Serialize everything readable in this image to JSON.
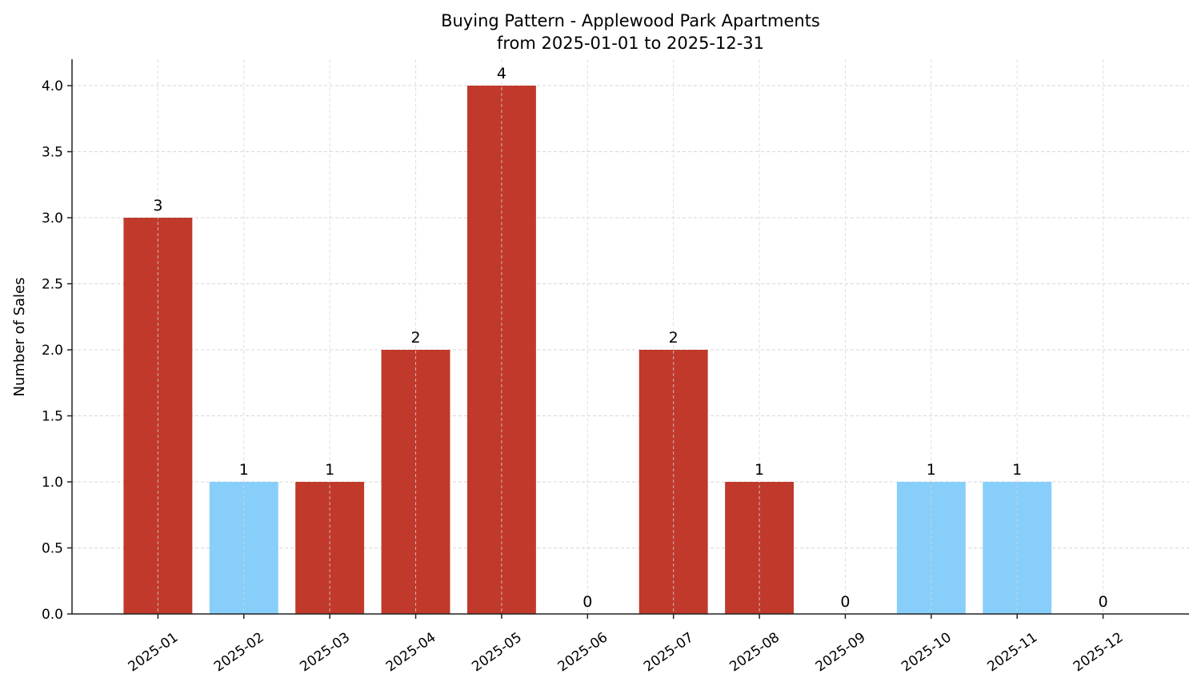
{
  "chart_data": {
    "type": "bar",
    "title": "Buying Pattern - Applewood Park Apartments",
    "subtitle": "from 2025-01-01 to 2025-12-31",
    "xlabel": "",
    "ylabel": "Number of Sales",
    "categories": [
      "2025-01",
      "2025-02",
      "2025-03",
      "2025-04",
      "2025-05",
      "2025-06",
      "2025-07",
      "2025-08",
      "2025-09",
      "2025-10",
      "2025-11",
      "2025-12"
    ],
    "values": [
      3,
      1,
      1,
      2,
      4,
      0,
      2,
      1,
      0,
      1,
      1,
      0
    ],
    "bar_colors": [
      "#c0392b",
      "#87cefa",
      "#c0392b",
      "#c0392b",
      "#c0392b",
      "#c0392b",
      "#c0392b",
      "#c0392b",
      "#c0392b",
      "#87cefa",
      "#87cefa",
      "#c0392b"
    ],
    "ylim": [
      0,
      4.2
    ],
    "yticks": [
      "0.0",
      "0.5",
      "1.0",
      "1.5",
      "2.0",
      "2.5",
      "3.0",
      "3.5",
      "4.0"
    ],
    "grid": true,
    "legend": "none"
  }
}
